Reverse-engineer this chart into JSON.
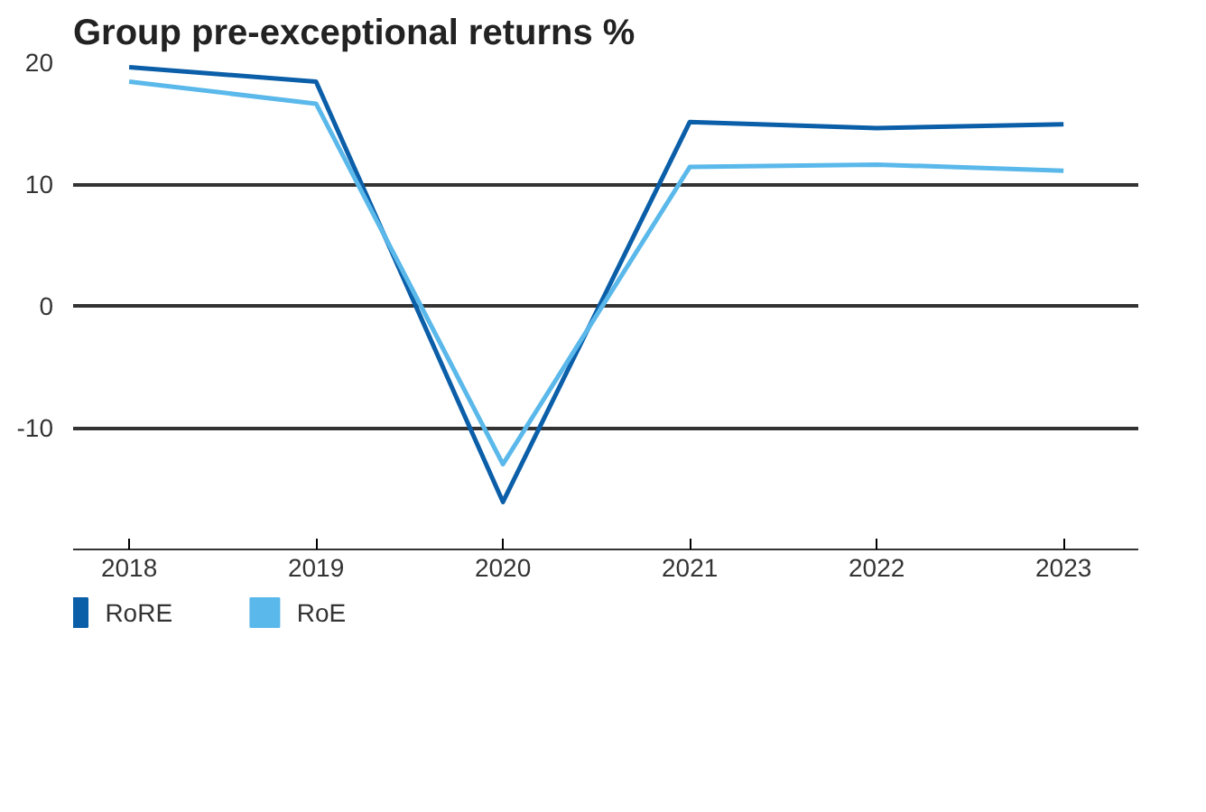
{
  "chart_data": {
    "type": "line",
    "title": "Group pre-exceptional returns %",
    "categories": [
      "2018",
      "2019",
      "2020",
      "2021",
      "2022",
      "2023"
    ],
    "series": [
      {
        "name": "RoRE",
        "color": "#0b5ea8",
        "values": [
          19.6,
          18.4,
          -16.1,
          15.1,
          14.6,
          14.9
        ]
      },
      {
        "name": "RoE",
        "color": "#5ab8ea",
        "values": [
          18.4,
          16.6,
          -13.0,
          11.4,
          11.6,
          11.1
        ]
      }
    ],
    "ylim": [
      -20,
      20
    ],
    "yticks": [
      -10,
      0,
      10,
      20
    ],
    "grid": "y",
    "legend": "bottom left",
    "marker": "none",
    "line_style": "solid"
  }
}
